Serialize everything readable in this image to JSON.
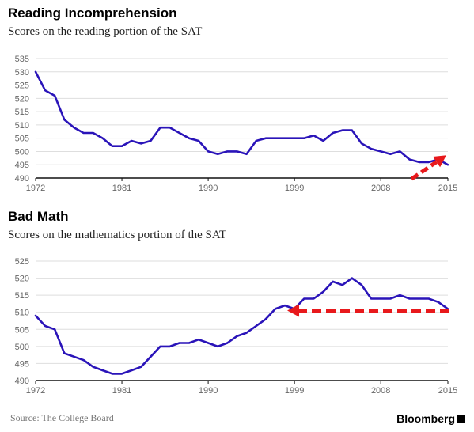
{
  "footer": {
    "source": "Source: The College Board",
    "brand": "Bloomberg"
  },
  "colors": {
    "line": "#2a14b9",
    "arrow": "#e8191c",
    "grid": "#dedede",
    "axis": "#111111"
  },
  "chart_data": [
    {
      "type": "line",
      "title": "Reading Incomprehension",
      "subtitle": "Scores on the reading portion of the SAT",
      "xlabel": "",
      "ylabel": "",
      "xlim": [
        1972,
        2015
      ],
      "ylim": [
        490,
        535
      ],
      "xticks": [
        1972,
        1981,
        1990,
        1999,
        2008,
        2015
      ],
      "yticks": [
        490,
        495,
        500,
        505,
        510,
        515,
        520,
        525,
        530,
        535
      ],
      "grid": true,
      "series": [
        {
          "x": [
            1972,
            1973,
            1974,
            1975,
            1976,
            1977,
            1978,
            1979,
            1980,
            1981,
            1982,
            1983,
            1984,
            1985,
            1986,
            1987,
            1988,
            1989,
            1990,
            1991,
            1992,
            1993,
            1994,
            1995,
            1996,
            1997,
            1998,
            1999,
            2000,
            2001,
            2002,
            2003,
            2004,
            2005,
            2006,
            2007,
            2008,
            2009,
            2010,
            2011,
            2012,
            2013,
            2014,
            2015
          ],
          "values": [
            530,
            523,
            521,
            512,
            509,
            507,
            507,
            505,
            502,
            502,
            504,
            503,
            504,
            509,
            509,
            507,
            505,
            504,
            500,
            499,
            500,
            500,
            499,
            504,
            505,
            505,
            505,
            505,
            505,
            506,
            504,
            507,
            508,
            508,
            503,
            501,
            500,
            499,
            500,
            497,
            496,
            496,
            497,
            495
          ]
        }
      ],
      "annotation": {
        "type": "arrow",
        "direction": "up-right",
        "style": "dashed",
        "at_x": 2015,
        "at_y": 495
      }
    },
    {
      "type": "line",
      "title": "Bad Math",
      "subtitle": "Scores on the mathematics portion of the SAT",
      "xlabel": "",
      "ylabel": "",
      "xlim": [
        1972,
        2015
      ],
      "ylim": [
        490,
        525
      ],
      "xticks": [
        1972,
        1981,
        1990,
        1999,
        2008,
        2015
      ],
      "yticks": [
        490,
        495,
        500,
        505,
        510,
        515,
        520,
        525
      ],
      "grid": true,
      "series": [
        {
          "x": [
            1972,
            1973,
            1974,
            1975,
            1976,
            1977,
            1978,
            1979,
            1980,
            1981,
            1982,
            1983,
            1984,
            1985,
            1986,
            1987,
            1988,
            1989,
            1990,
            1991,
            1992,
            1993,
            1994,
            1995,
            1996,
            1997,
            1998,
            1999,
            2000,
            2001,
            2002,
            2003,
            2004,
            2005,
            2006,
            2007,
            2008,
            2009,
            2010,
            2011,
            2012,
            2013,
            2014,
            2015
          ],
          "values": [
            509,
            506,
            505,
            498,
            497,
            496,
            494,
            493,
            492,
            492,
            493,
            494,
            497,
            500,
            500,
            501,
            501,
            502,
            501,
            500,
            501,
            503,
            504,
            506,
            508,
            511,
            512,
            511,
            514,
            514,
            516,
            519,
            518,
            520,
            518,
            514,
            514,
            514,
            515,
            514,
            514,
            514,
            513,
            511
          ]
        }
      ],
      "annotation": {
        "type": "arrow",
        "direction": "left",
        "style": "dashed",
        "from_x": 2015,
        "to_x": 1998,
        "at_y": 510.5
      }
    }
  ]
}
